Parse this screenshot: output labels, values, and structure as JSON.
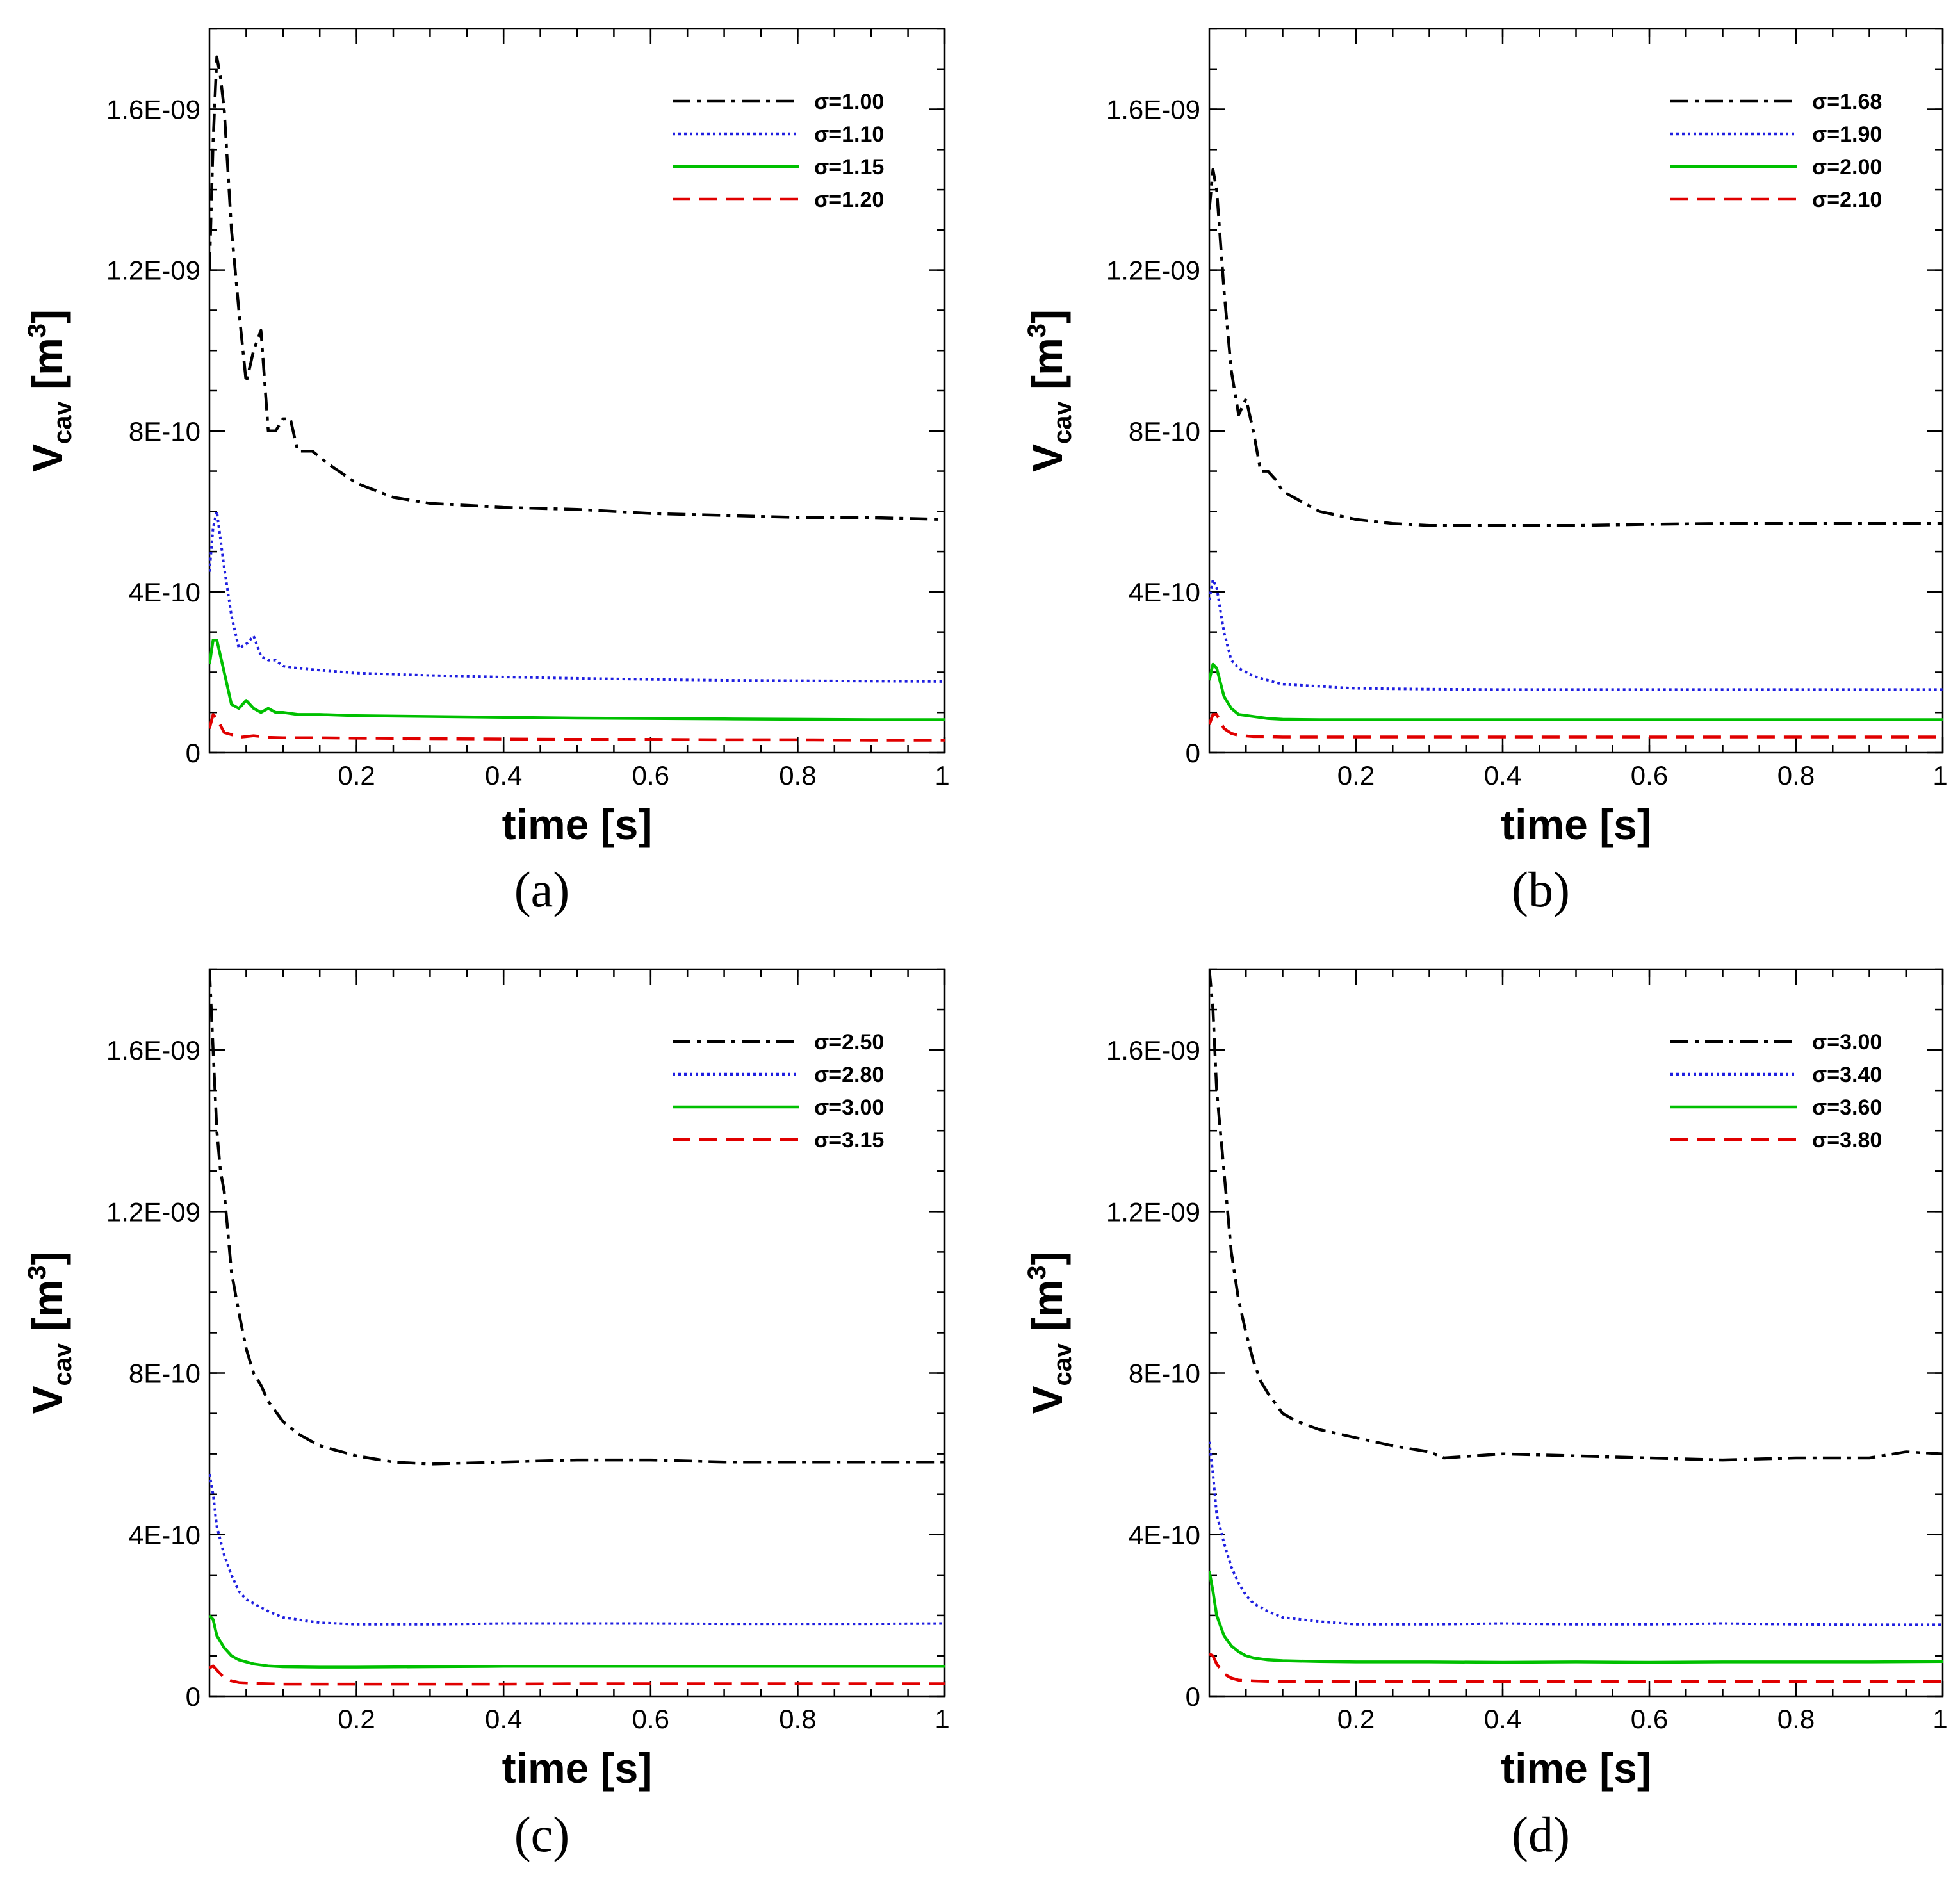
{
  "chart_data": [
    {
      "type": "line",
      "panel_label": "(a)",
      "xlabel": "time [s]",
      "ylabel_main": "V",
      "ylabel_sub": "cav",
      "ylabel_unit_open": "[m",
      "ylabel_sup": "3",
      "ylabel_unit_close": "]",
      "xlim": [
        0,
        1
      ],
      "ylim": [
        0,
        1.8e-09
      ],
      "xticks": [
        0.2,
        0.4,
        0.6,
        0.8,
        1
      ],
      "xtick_labels": [
        "0.2",
        "0.4",
        "0.6",
        "0.8",
        "1"
      ],
      "yticks": [
        0,
        4e-10,
        8e-10,
        1.2e-09,
        1.6e-09
      ],
      "ytick_labels": [
        "0",
        "4E-10",
        "8E-10",
        "1.2E-09",
        "1.6E-09"
      ],
      "legend_position": "top-right",
      "series": [
        {
          "name": "σ=1.00",
          "color": "#000000",
          "style": "dashdot",
          "x": [
            0,
            0.005,
            0.01,
            0.015,
            0.02,
            0.03,
            0.04,
            0.05,
            0.06,
            0.07,
            0.08,
            0.09,
            0.1,
            0.11,
            0.12,
            0.14,
            0.16,
            0.2,
            0.25,
            0.3,
            0.4,
            0.5,
            0.6,
            0.7,
            0.8,
            0.9,
            1.0
          ],
          "y": [
            1.2e-09,
            1.52e-09,
            1.73e-09,
            1.68e-09,
            1.6e-09,
            1.3e-09,
            1.1e-09,
            9.2e-10,
            1e-09,
            1.05e-09,
            8e-10,
            8e-10,
            8.3e-10,
            8.3e-10,
            7.5e-10,
            7.5e-10,
            7.2e-10,
            6.7e-10,
            6.35e-10,
            6.2e-10,
            6.1e-10,
            6.05e-10,
            5.95e-10,
            5.9e-10,
            5.85e-10,
            5.85e-10,
            5.8e-10
          ]
        },
        {
          "name": "σ=1.10",
          "color": "#1f1fe0",
          "style": "dotted",
          "x": [
            0,
            0.005,
            0.01,
            0.02,
            0.03,
            0.04,
            0.05,
            0.06,
            0.07,
            0.08,
            0.09,
            0.1,
            0.12,
            0.15,
            0.2,
            0.3,
            0.4,
            0.5,
            0.6,
            0.7,
            0.8,
            0.9,
            1.0
          ],
          "y": [
            4.5e-10,
            5.6e-10,
            6e-10,
            4.6e-10,
            3.4e-10,
            2.6e-10,
            2.7e-10,
            2.9e-10,
            2.4e-10,
            2.3e-10,
            2.3e-10,
            2.15e-10,
            2.1e-10,
            2.05e-10,
            1.98e-10,
            1.92e-10,
            1.88e-10,
            1.85e-10,
            1.82e-10,
            1.8e-10,
            1.79e-10,
            1.78e-10,
            1.77e-10
          ]
        },
        {
          "name": "σ=1.15",
          "color": "#00c000",
          "style": "solid",
          "x": [
            0,
            0.005,
            0.01,
            0.02,
            0.03,
            0.04,
            0.05,
            0.06,
            0.07,
            0.08,
            0.09,
            0.1,
            0.12,
            0.15,
            0.2,
            0.3,
            0.4,
            0.5,
            0.6,
            0.7,
            0.8,
            0.9,
            1.0
          ],
          "y": [
            2.2e-10,
            2.8e-10,
            2.8e-10,
            2e-10,
            1.2e-10,
            1.1e-10,
            1.3e-10,
            1.1e-10,
            1e-10,
            1.1e-10,
            1e-10,
            1e-10,
            9.5e-11,
            9.5e-11,
            9.2e-11,
            9e-11,
            8.8e-11,
            8.6e-11,
            8.5e-11,
            8.4e-11,
            8.3e-11,
            8.2e-11,
            8.2e-11
          ]
        },
        {
          "name": "σ=1.20",
          "color": "#e00000",
          "style": "dashed",
          "x": [
            0,
            0.005,
            0.01,
            0.02,
            0.03,
            0.04,
            0.05,
            0.06,
            0.08,
            0.1,
            0.15,
            0.2,
            0.3,
            0.4,
            0.5,
            0.6,
            0.7,
            0.8,
            0.9,
            1.0
          ],
          "y": [
            6e-11,
            9.5e-11,
            8.5e-11,
            5e-11,
            4.5e-11,
            3.8e-11,
            4e-11,
            4.2e-11,
            3.8e-11,
            3.7e-11,
            3.7e-11,
            3.6e-11,
            3.5e-11,
            3.4e-11,
            3.3e-11,
            3.3e-11,
            3.2e-11,
            3.2e-11,
            3.1e-11,
            3.1e-11
          ]
        }
      ]
    },
    {
      "type": "line",
      "panel_label": "(b)",
      "xlabel": "time [s]",
      "ylabel_main": "V",
      "ylabel_sub": "cav",
      "ylabel_unit_open": "[m",
      "ylabel_sup": "3",
      "ylabel_unit_close": "]",
      "xlim": [
        0,
        1
      ],
      "ylim": [
        0,
        1.8e-09
      ],
      "xticks": [
        0.2,
        0.4,
        0.6,
        0.8,
        1
      ],
      "xtick_labels": [
        "0.2",
        "0.4",
        "0.6",
        "0.8",
        "1"
      ],
      "yticks": [
        0,
        4e-10,
        8e-10,
        1.2e-09,
        1.6e-09
      ],
      "ytick_labels": [
        "0",
        "4E-10",
        "8E-10",
        "1.2E-09",
        "1.6E-09"
      ],
      "legend_position": "top-right",
      "series": [
        {
          "name": "σ=1.68",
          "color": "#000000",
          "style": "dashdot",
          "x": [
            0,
            0.005,
            0.01,
            0.02,
            0.03,
            0.04,
            0.05,
            0.06,
            0.07,
            0.08,
            0.09,
            0.1,
            0.12,
            0.15,
            0.2,
            0.25,
            0.3,
            0.4,
            0.5,
            0.6,
            0.7,
            0.8,
            0.9,
            1.0
          ],
          "y": [
            1.35e-09,
            1.45e-09,
            1.4e-09,
            1.15e-09,
            9.5e-10,
            8.4e-10,
            8.8e-10,
            8e-10,
            7e-10,
            7e-10,
            6.8e-10,
            6.5e-10,
            6.3e-10,
            6e-10,
            5.8e-10,
            5.7e-10,
            5.65e-10,
            5.65e-10,
            5.65e-10,
            5.68e-10,
            5.7e-10,
            5.7e-10,
            5.7e-10,
            5.7e-10
          ]
        },
        {
          "name": "σ=1.90",
          "color": "#1f1fe0",
          "style": "dotted",
          "x": [
            0,
            0.005,
            0.01,
            0.02,
            0.03,
            0.04,
            0.05,
            0.06,
            0.08,
            0.1,
            0.15,
            0.2,
            0.3,
            0.4,
            0.5,
            0.6,
            0.7,
            0.8,
            0.9,
            1.0
          ],
          "y": [
            3.8e-10,
            4.3e-10,
            4.1e-10,
            3e-10,
            2.3e-10,
            2.1e-10,
            2e-10,
            1.9e-10,
            1.8e-10,
            1.7e-10,
            1.65e-10,
            1.6e-10,
            1.58e-10,
            1.57e-10,
            1.57e-10,
            1.57e-10,
            1.57e-10,
            1.57e-10,
            1.57e-10,
            1.57e-10
          ]
        },
        {
          "name": "σ=2.00",
          "color": "#00c000",
          "style": "solid",
          "x": [
            0,
            0.005,
            0.01,
            0.02,
            0.03,
            0.04,
            0.06,
            0.08,
            0.1,
            0.15,
            0.2,
            0.3,
            0.4,
            0.5,
            0.6,
            0.7,
            0.8,
            0.9,
            1.0
          ],
          "y": [
            1.8e-10,
            2.2e-10,
            2.1e-10,
            1.4e-10,
            1.1e-10,
            9.5e-11,
            9e-11,
            8.5e-11,
            8.3e-11,
            8.2e-11,
            8.2e-11,
            8.2e-11,
            8.2e-11,
            8.2e-11,
            8.2e-11,
            8.2e-11,
            8.2e-11,
            8.2e-11,
            8.2e-11
          ]
        },
        {
          "name": "σ=2.10",
          "color": "#e00000",
          "style": "dashed",
          "x": [
            0,
            0.005,
            0.01,
            0.02,
            0.03,
            0.04,
            0.06,
            0.08,
            0.1,
            0.2,
            0.3,
            0.4,
            0.5,
            0.6,
            0.7,
            0.8,
            0.9,
            1.0
          ],
          "y": [
            7e-11,
            9.5e-11,
            9.5e-11,
            6e-11,
            4.8e-11,
            4.3e-11,
            4e-11,
            4e-11,
            3.9e-11,
            3.9e-11,
            3.9e-11,
            3.9e-11,
            3.9e-11,
            3.9e-11,
            3.9e-11,
            3.9e-11,
            3.9e-11,
            3.9e-11
          ]
        }
      ]
    },
    {
      "type": "line",
      "panel_label": "(c)",
      "xlabel": "time [s]",
      "ylabel_main": "V",
      "ylabel_sub": "cav",
      "ylabel_unit_open": "[m",
      "ylabel_sup": "3",
      "ylabel_unit_close": "]",
      "xlim": [
        0,
        1
      ],
      "ylim": [
        0,
        1.8e-09
      ],
      "xticks": [
        0.2,
        0.4,
        0.6,
        0.8,
        1
      ],
      "xtick_labels": [
        "0.2",
        "0.4",
        "0.6",
        "0.8",
        "1"
      ],
      "yticks": [
        0,
        4e-10,
        8e-10,
        1.2e-09,
        1.6e-09
      ],
      "ytick_labels": [
        "0",
        "4E-10",
        "8E-10",
        "1.2E-09",
        "1.6E-09"
      ],
      "legend_position": "top-right",
      "series": [
        {
          "name": "σ=2.50",
          "color": "#000000",
          "style": "dashdot",
          "x": [
            0,
            0.005,
            0.01,
            0.015,
            0.02,
            0.03,
            0.04,
            0.05,
            0.06,
            0.07,
            0.08,
            0.1,
            0.12,
            0.15,
            0.2,
            0.25,
            0.3,
            0.4,
            0.5,
            0.6,
            0.7,
            0.8,
            0.9,
            1.0
          ],
          "y": [
            1.8e-09,
            1.6e-09,
            1.4e-09,
            1.3e-09,
            1.25e-09,
            1.05e-09,
            9.5e-10,
            8.6e-10,
            8e-10,
            7.7e-10,
            7.3e-10,
            6.8e-10,
            6.5e-10,
            6.2e-10,
            5.95e-10,
            5.8e-10,
            5.75e-10,
            5.8e-10,
            5.85e-10,
            5.85e-10,
            5.8e-10,
            5.8e-10,
            5.8e-10,
            5.8e-10
          ]
        },
        {
          "name": "σ=2.80",
          "color": "#1f1fe0",
          "style": "dotted",
          "x": [
            0,
            0.005,
            0.01,
            0.02,
            0.03,
            0.04,
            0.05,
            0.06,
            0.08,
            0.1,
            0.15,
            0.2,
            0.3,
            0.4,
            0.5,
            0.6,
            0.7,
            0.8,
            0.9,
            1.0
          ],
          "y": [
            5.5e-10,
            5e-10,
            4.2e-10,
            3.5e-10,
            3e-10,
            2.6e-10,
            2.4e-10,
            2.3e-10,
            2.1e-10,
            1.95e-10,
            1.82e-10,
            1.78e-10,
            1.78e-10,
            1.8e-10,
            1.8e-10,
            1.8e-10,
            1.79e-10,
            1.79e-10,
            1.79e-10,
            1.8e-10
          ]
        },
        {
          "name": "σ=3.00",
          "color": "#00c000",
          "style": "solid",
          "x": [
            0,
            0.005,
            0.01,
            0.02,
            0.03,
            0.04,
            0.05,
            0.06,
            0.08,
            0.1,
            0.15,
            0.2,
            0.3,
            0.4,
            0.5,
            0.6,
            0.7,
            0.8,
            0.9,
            1.0
          ],
          "y": [
            2e-10,
            1.9e-10,
            1.5e-10,
            1.2e-10,
            1e-10,
            9e-11,
            8.5e-11,
            8e-11,
            7.5e-11,
            7.3e-11,
            7.2e-11,
            7.2e-11,
            7.3e-11,
            7.4e-11,
            7.4e-11,
            7.4e-11,
            7.4e-11,
            7.4e-11,
            7.4e-11,
            7.4e-11
          ]
        },
        {
          "name": "σ=3.15",
          "color": "#e00000",
          "style": "dashed",
          "x": [
            0,
            0.005,
            0.01,
            0.02,
            0.03,
            0.04,
            0.06,
            0.08,
            0.1,
            0.2,
            0.3,
            0.4,
            0.5,
            0.6,
            0.7,
            0.8,
            0.9,
            1.0
          ],
          "y": [
            7e-11,
            7.5e-11,
            6.5e-11,
            4.5e-11,
            3.8e-11,
            3.4e-11,
            3.2e-11,
            3.1e-11,
            3e-11,
            3e-11,
            3e-11,
            3e-11,
            3.1e-11,
            3.1e-11,
            3.1e-11,
            3.1e-11,
            3.1e-11,
            3.1e-11
          ]
        }
      ]
    },
    {
      "type": "line",
      "panel_label": "(d)",
      "xlabel": "time [s]",
      "ylabel_main": "V",
      "ylabel_sub": "cav",
      "ylabel_unit_open": "[m",
      "ylabel_sup": "3",
      "ylabel_unit_close": "]",
      "xlim": [
        0,
        1
      ],
      "ylim": [
        0,
        1.8e-09
      ],
      "xticks": [
        0.2,
        0.4,
        0.6,
        0.8,
        1
      ],
      "xtick_labels": [
        "0.2",
        "0.4",
        "0.6",
        "0.8",
        "1"
      ],
      "yticks": [
        0,
        4e-10,
        8e-10,
        1.2e-09,
        1.6e-09
      ],
      "ytick_labels": [
        "0",
        "4E-10",
        "8E-10",
        "1.2E-09",
        "1.6E-09"
      ],
      "legend_position": "top-right",
      "series": [
        {
          "name": "σ=3.00",
          "color": "#000000",
          "style": "dashdot",
          "x": [
            0,
            0.005,
            0.01,
            0.015,
            0.02,
            0.03,
            0.04,
            0.05,
            0.06,
            0.07,
            0.08,
            0.1,
            0.12,
            0.15,
            0.2,
            0.25,
            0.3,
            0.32,
            0.4,
            0.5,
            0.6,
            0.7,
            0.8,
            0.9,
            0.95,
            1.0
          ],
          "y": [
            1.8e-09,
            1.7e-09,
            1.5e-09,
            1.4e-09,
            1.3e-09,
            1.1e-09,
            9.8e-10,
            9e-10,
            8.3e-10,
            7.8e-10,
            7.5e-10,
            7e-10,
            6.8e-10,
            6.6e-10,
            6.4e-10,
            6.2e-10,
            6.05e-10,
            5.9e-10,
            6e-10,
            5.95e-10,
            5.9e-10,
            5.85e-10,
            5.9e-10,
            5.9e-10,
            6.05e-10,
            6e-10
          ]
        },
        {
          "name": "σ=3.40",
          "color": "#1f1fe0",
          "style": "dotted",
          "x": [
            0,
            0.005,
            0.01,
            0.02,
            0.03,
            0.04,
            0.05,
            0.06,
            0.08,
            0.1,
            0.15,
            0.2,
            0.3,
            0.4,
            0.5,
            0.6,
            0.7,
            0.8,
            0.9,
            1.0
          ],
          "y": [
            6.3e-10,
            5.5e-10,
            4.5e-10,
            3.8e-10,
            3.2e-10,
            2.8e-10,
            2.5e-10,
            2.3e-10,
            2.1e-10,
            1.95e-10,
            1.85e-10,
            1.78e-10,
            1.78e-10,
            1.8e-10,
            1.78e-10,
            1.78e-10,
            1.8e-10,
            1.78e-10,
            1.77e-10,
            1.77e-10
          ]
        },
        {
          "name": "σ=3.60",
          "color": "#00c000",
          "style": "solid",
          "x": [
            0,
            0.005,
            0.01,
            0.02,
            0.03,
            0.04,
            0.05,
            0.06,
            0.08,
            0.1,
            0.15,
            0.2,
            0.3,
            0.4,
            0.5,
            0.6,
            0.7,
            0.8,
            0.9,
            1.0
          ],
          "y": [
            3.1e-10,
            2.6e-10,
            2e-10,
            1.5e-10,
            1.25e-10,
            1.1e-10,
            1e-10,
            9.5e-11,
            9e-11,
            8.8e-11,
            8.6e-11,
            8.5e-11,
            8.5e-11,
            8.4e-11,
            8.5e-11,
            8.4e-11,
            8.5e-11,
            8.5e-11,
            8.5e-11,
            8.6e-11
          ]
        },
        {
          "name": "σ=3.80",
          "color": "#e00000",
          "style": "dashed",
          "x": [
            0,
            0.005,
            0.01,
            0.02,
            0.03,
            0.04,
            0.06,
            0.08,
            0.1,
            0.2,
            0.3,
            0.4,
            0.5,
            0.6,
            0.7,
            0.8,
            0.9,
            1.0
          ],
          "y": [
            1.05e-10,
            1e-10,
            8e-11,
            5.5e-11,
            4.5e-11,
            4e-11,
            3.8e-11,
            3.7e-11,
            3.6e-11,
            3.6e-11,
            3.6e-11,
            3.6e-11,
            3.7e-11,
            3.7e-11,
            3.7e-11,
            3.7e-11,
            3.7e-11,
            3.7e-11
          ]
        }
      ]
    }
  ]
}
